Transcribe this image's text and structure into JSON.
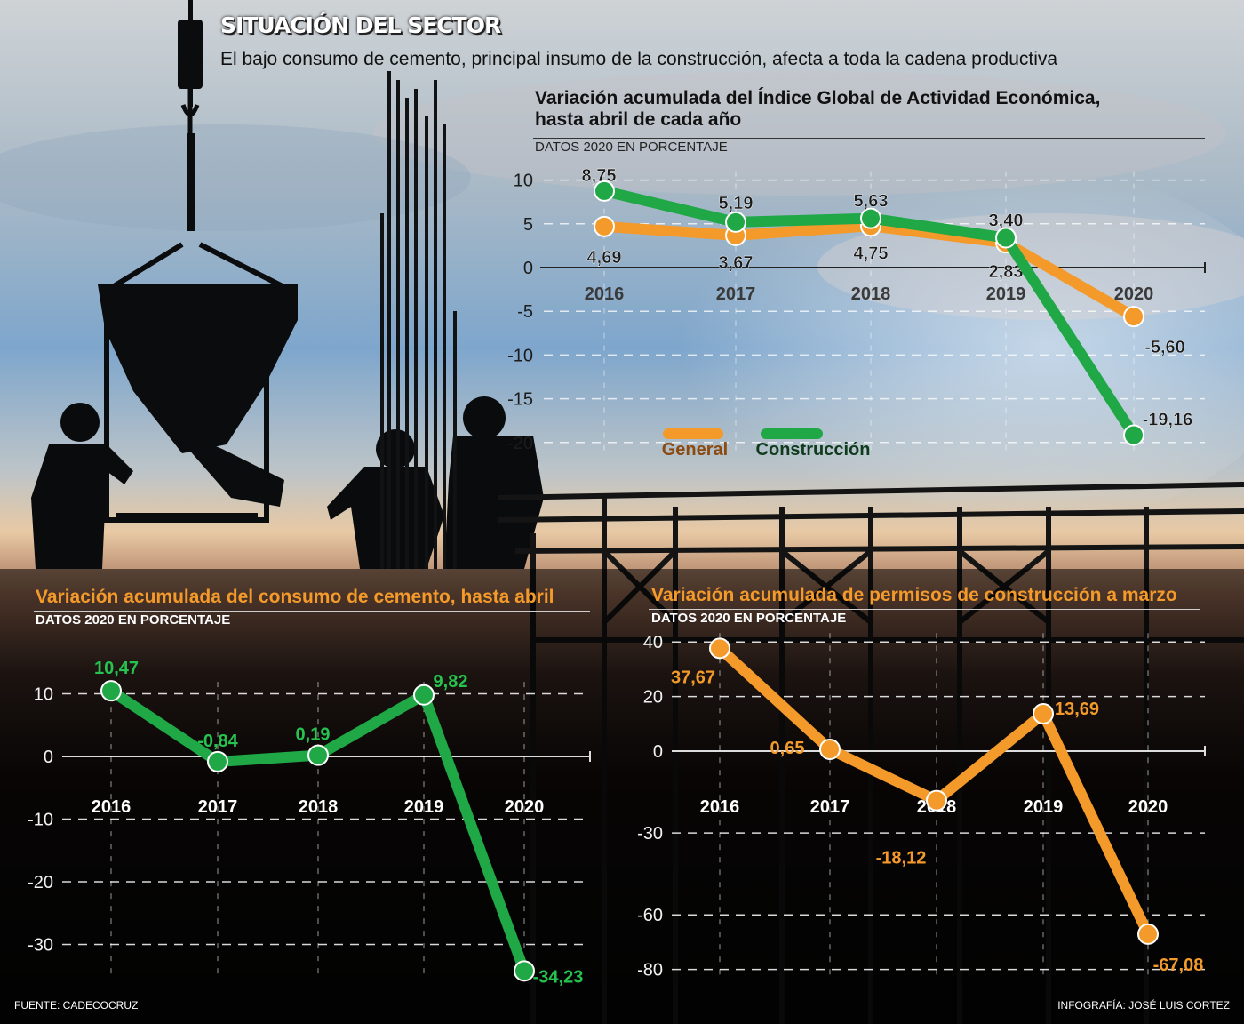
{
  "header": {
    "title": "SITUACIÓN DEL SECTOR",
    "subtitle": "El bajo consumo de cemento, principal insumo de la construcción, afecta a toda la cadena productiva"
  },
  "footer": {
    "source": "FUENTE: CADECOCRUZ",
    "credit": "INFOGRAFÍA: JOSÉ LUIS CORTEZ"
  },
  "colors": {
    "orange": "#f39a2b",
    "green": "#1fa845",
    "green_label": "#26c34f",
    "axis": "#222222"
  },
  "chart_data": [
    {
      "id": "igae",
      "type": "line",
      "title": "Variación acumulada del Índice Global de Actividad Económica, hasta abril de cada año",
      "title_lines": [
        "Variación acumulada del Índice Global de Actividad Económica,",
        "hasta abril de cada año"
      ],
      "unit": "DATOS 2020 EN PORCENTAJE",
      "categories": [
        "2016",
        "2017",
        "2018",
        "2019",
        "2020"
      ],
      "yticks": [
        10,
        5,
        0,
        -5,
        -10,
        -15,
        -20
      ],
      "ytick_labels": [
        "10",
        "5",
        "0",
        "-5",
        "-10",
        "-15",
        "-20"
      ],
      "ylim": [
        -20,
        10
      ],
      "grid": true,
      "series": [
        {
          "name": "General",
          "color": "#f39a2b",
          "values": [
            4.69,
            3.67,
            4.75,
            2.83,
            -5.6
          ],
          "labels": [
            "4,69",
            "3,67",
            "4,75",
            "2,83",
            "-5,60"
          ]
        },
        {
          "name": "Construcción",
          "color": "#1fa845",
          "values": [
            8.75,
            5.19,
            5.63,
            3.4,
            -19.16
          ],
          "labels": [
            "8,75",
            "5,19",
            "5,63",
            "3,40",
            "-19,16"
          ]
        }
      ],
      "legend": "bottom-center"
    },
    {
      "id": "cemento",
      "type": "line",
      "title": "Variación acumulada del consumo de cemento, hasta abril",
      "unit": "DATOS 2020 EN PORCENTAJE",
      "categories": [
        "2016",
        "2017",
        "2018",
        "2019",
        "2020"
      ],
      "yticks": [
        10,
        0,
        -10,
        -20,
        -30
      ],
      "ytick_labels": [
        "10",
        "0",
        "-10",
        "-20",
        "-30"
      ],
      "ylim": [
        -34.23,
        10.47
      ],
      "grid": true,
      "series": [
        {
          "name": "Cemento",
          "color": "#1fa845",
          "values": [
            10.47,
            -0.84,
            0.19,
            9.82,
            -34.23
          ],
          "labels": [
            "10,47",
            "-0,84",
            "0,19",
            "9,82",
            "-34,23"
          ]
        }
      ]
    },
    {
      "id": "permisos",
      "type": "line",
      "title": "Variación acumulada de permisos de construcción a marzo",
      "unit": "DATOS 2020 EN PORCENTAJE",
      "categories": [
        "2016",
        "2017",
        "2018",
        "2019",
        "2020"
      ],
      "yticks": [
        40,
        20,
        0,
        -30,
        -60,
        -80
      ],
      "ytick_labels": [
        "40",
        "20",
        "0",
        "-30",
        "-60",
        "-80"
      ],
      "ylim": [
        -80,
        40
      ],
      "grid": true,
      "series": [
        {
          "name": "Permisos",
          "color": "#f39a2b",
          "values": [
            37.67,
            0.65,
            -18.12,
            13.69,
            -67.08
          ],
          "labels": [
            "37,67",
            "0,65",
            "-18,12",
            "13,69",
            "-67,08"
          ]
        }
      ]
    }
  ]
}
